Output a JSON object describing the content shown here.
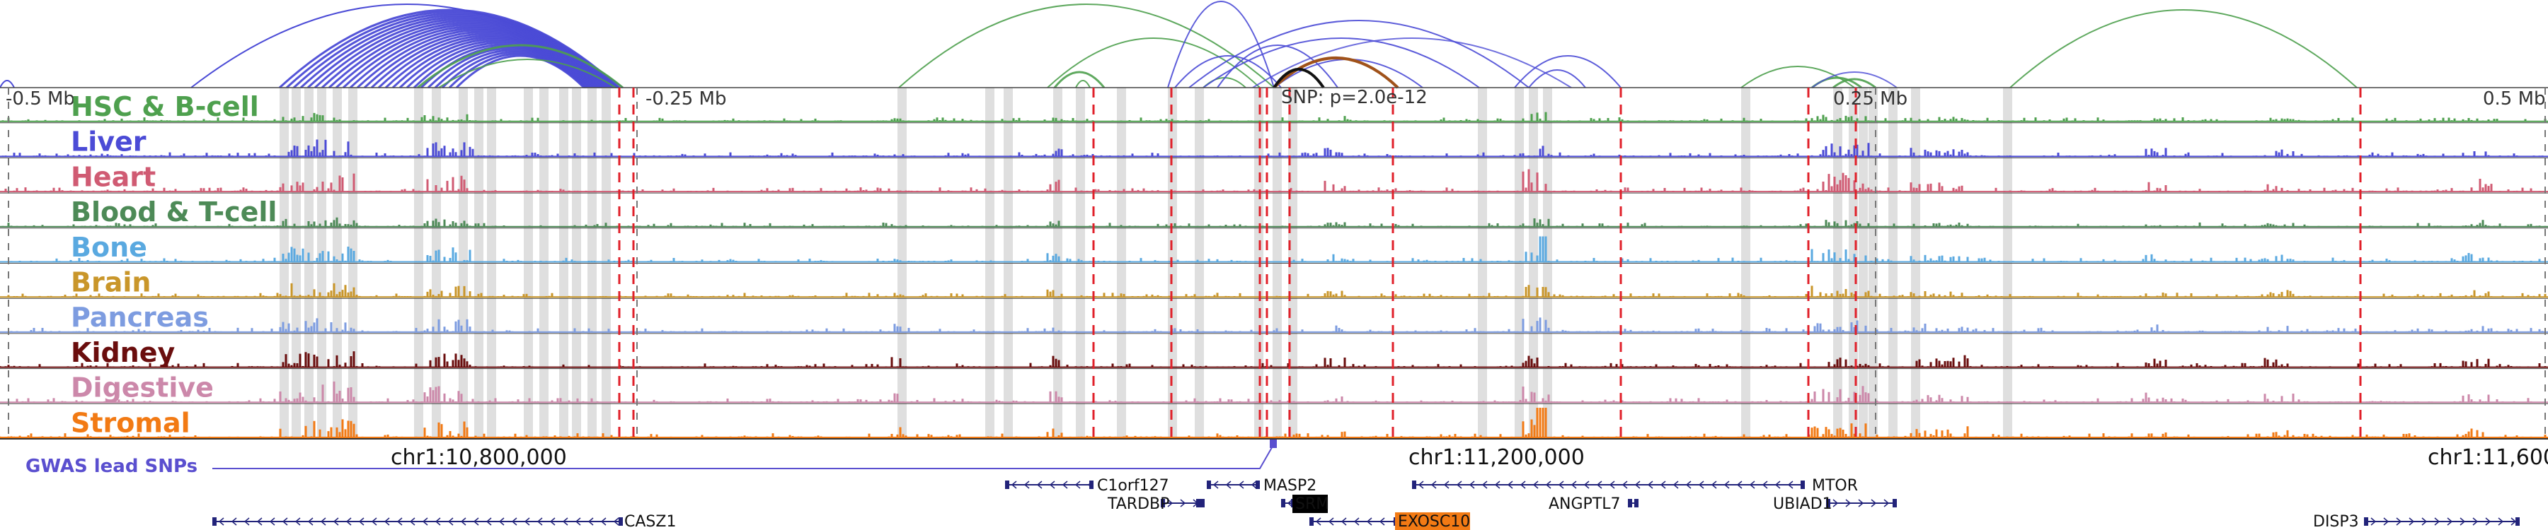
{
  "tracks": [
    {
      "name": "HSC & B-cell",
      "color": "#4ea04e"
    },
    {
      "name": "Liver",
      "color": "#4b4bd6"
    },
    {
      "name": "Heart",
      "color": "#d05b73"
    },
    {
      "name": "Blood & T-cell",
      "color": "#4d8a57"
    },
    {
      "name": "Bone",
      "color": "#5aa9e0"
    },
    {
      "name": "Brain",
      "color": "#c9962a"
    },
    {
      "name": "Pancreas",
      "color": "#7d9ce0"
    },
    {
      "name": "Kidney",
      "color": "#6a0d0d"
    },
    {
      "name": "Digestive",
      "color": "#cc88aa"
    },
    {
      "name": "Stromal",
      "color": "#f27a14"
    }
  ],
  "scale_labels": [
    "-0.5 Mb",
    "-0.25 Mb",
    "0.25 Mb",
    "0.5 Mb"
  ],
  "snp_label": "SNP: p=2.0e-12",
  "coordinates": [
    "chr1:10,800,000",
    "chr1:11,200,000",
    "chr1:11,600"
  ],
  "gwas_label": "GWAS lead SNPs",
  "genes": [
    {
      "name": "C1orf127"
    },
    {
      "name": "MASP2"
    },
    {
      "name": "TARDBP"
    },
    {
      "name": "SRM",
      "highlight": "#000000"
    },
    {
      "name": "EXOSC10",
      "highlight": "#f27a14"
    },
    {
      "name": "ANGPTL7"
    },
    {
      "name": "MTOR"
    },
    {
      "name": "UBIAD1"
    },
    {
      "name": "CASZ1"
    },
    {
      "name": "DISP3"
    }
  ],
  "colors": {
    "arc_blue": "#4b4bd6",
    "arc_green": "#4ea04e",
    "arc_brown": "#a0521a",
    "gwas": "#5a4fcf",
    "marker": "#e0202a",
    "shade": "#dcdcdc",
    "gene": "#22237a"
  }
}
